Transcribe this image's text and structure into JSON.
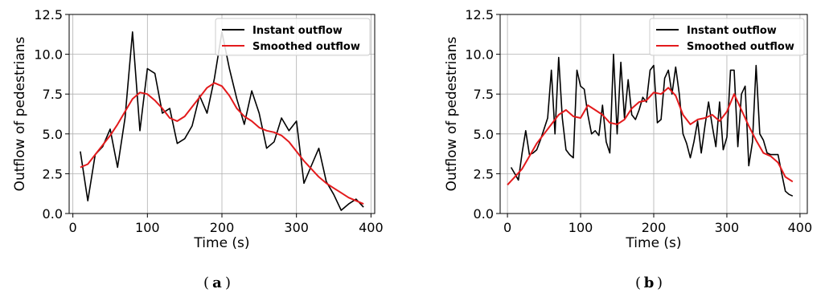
{
  "colors": {
    "instant": "#000000",
    "smoothed": "#e31a1c",
    "grid": "#b0b0b0"
  },
  "chart_data": [
    {
      "type": "line",
      "caption_letter": "a",
      "xlabel": "Time (s)",
      "ylabel": "Outflow of pedestrians",
      "xlim": [
        -5,
        405
      ],
      "ylim": [
        0,
        12.5
      ],
      "xticks": [
        "0",
        "100",
        "200",
        "300",
        "400"
      ],
      "yticks": [
        "0.0",
        "2.5",
        "5.0",
        "7.5",
        "10.0",
        "12.5"
      ],
      "grid": true,
      "legend_position": "top-right",
      "series": [
        {
          "name": "Instant outflow",
          "x": [
            10,
            20,
            30,
            40,
            50,
            60,
            70,
            80,
            90,
            100,
            110,
            120,
            130,
            140,
            150,
            160,
            170,
            180,
            190,
            200,
            210,
            220,
            230,
            240,
            250,
            260,
            270,
            280,
            290,
            300,
            310,
            320,
            330,
            340,
            350,
            360,
            370,
            380,
            390
          ],
          "y": [
            3.9,
            0.8,
            3.7,
            4.2,
            5.3,
            2.9,
            6.0,
            11.4,
            5.2,
            9.1,
            8.8,
            6.3,
            6.6,
            4.4,
            4.7,
            5.5,
            7.4,
            6.3,
            8.5,
            11.4,
            9.1,
            7.2,
            5.6,
            7.7,
            6.3,
            4.1,
            4.5,
            6.0,
            5.2,
            5.8,
            1.9,
            3.0,
            4.1,
            2.0,
            1.2,
            0.2,
            0.6,
            0.9,
            0.4
          ]
        },
        {
          "name": "Smoothed outflow",
          "x": [
            10,
            20,
            30,
            40,
            50,
            60,
            70,
            80,
            90,
            100,
            110,
            120,
            130,
            140,
            150,
            160,
            170,
            180,
            190,
            200,
            210,
            220,
            230,
            240,
            250,
            260,
            270,
            280,
            290,
            300,
            310,
            320,
            330,
            340,
            350,
            360,
            370,
            380,
            390
          ],
          "y": [
            2.9,
            3.1,
            3.7,
            4.3,
            4.9,
            5.6,
            6.4,
            7.2,
            7.6,
            7.5,
            7.1,
            6.6,
            6.0,
            5.8,
            6.1,
            6.7,
            7.3,
            7.9,
            8.2,
            8.0,
            7.4,
            6.6,
            6.1,
            5.8,
            5.4,
            5.2,
            5.1,
            4.9,
            4.5,
            3.9,
            3.3,
            2.8,
            2.3,
            1.9,
            1.6,
            1.3,
            1.0,
            0.8,
            0.6
          ]
        }
      ]
    },
    {
      "type": "line",
      "caption_letter": "b",
      "xlabel": "Time (s)",
      "ylabel": "Outflow of pedestrians",
      "xlim": [
        -10,
        410
      ],
      "ylim": [
        0,
        12.5
      ],
      "xticks": [
        "0",
        "100",
        "200",
        "300",
        "400"
      ],
      "yticks": [
        "0.0",
        "2.5",
        "5.0",
        "7.5",
        "10.0",
        "12.5"
      ],
      "grid": true,
      "legend_position": "top-right",
      "series": [
        {
          "name": "Instant outflow",
          "x": [
            5,
            10,
            15,
            20,
            25,
            30,
            35,
            40,
            45,
            50,
            55,
            60,
            65,
            70,
            75,
            80,
            85,
            90,
            95,
            100,
            105,
            110,
            115,
            120,
            125,
            130,
            135,
            140,
            145,
            150,
            155,
            160,
            165,
            170,
            175,
            180,
            185,
            190,
            195,
            200,
            205,
            210,
            215,
            220,
            225,
            230,
            235,
            240,
            245,
            250,
            255,
            260,
            265,
            270,
            275,
            280,
            285,
            290,
            295,
            300,
            305,
            310,
            315,
            320,
            325,
            330,
            335,
            340,
            345,
            350,
            355,
            360,
            365,
            370,
            375,
            380,
            385,
            390
          ],
          "y": [
            2.9,
            2.5,
            2.1,
            3.8,
            5.2,
            3.7,
            3.8,
            4.0,
            4.6,
            5.3,
            6.0,
            9.0,
            5.0,
            9.8,
            6.0,
            4.0,
            3.7,
            3.5,
            9.0,
            8.0,
            7.8,
            6.2,
            5.0,
            5.2,
            4.9,
            6.8,
            4.5,
            3.8,
            10.0,
            5.0,
            9.5,
            6.0,
            8.4,
            6.2,
            5.9,
            6.5,
            7.3,
            7.0,
            9.0,
            9.3,
            5.7,
            5.9,
            8.5,
            9.0,
            7.5,
            9.2,
            7.5,
            5.0,
            4.4,
            3.5,
            4.5,
            5.8,
            3.8,
            5.5,
            7.0,
            5.5,
            4.2,
            7.0,
            4.0,
            4.8,
            9.0,
            9.0,
            4.2,
            7.5,
            8.0,
            3.0,
            4.5,
            9.3,
            5.0,
            4.6,
            3.8,
            3.7,
            3.7,
            3.7,
            2.5,
            1.4,
            1.2,
            1.1
          ]
        },
        {
          "name": "Smoothed outflow",
          "x": [
            0,
            10,
            20,
            30,
            40,
            50,
            60,
            70,
            80,
            90,
            100,
            110,
            120,
            130,
            140,
            150,
            160,
            170,
            180,
            190,
            200,
            210,
            220,
            230,
            240,
            250,
            260,
            270,
            280,
            290,
            300,
            310,
            320,
            330,
            340,
            350,
            360,
            370,
            380,
            390
          ],
          "y": [
            1.8,
            2.3,
            2.8,
            3.6,
            4.4,
            5.0,
            5.6,
            6.2,
            6.5,
            6.1,
            6.0,
            6.8,
            6.5,
            6.2,
            5.7,
            5.6,
            5.9,
            6.6,
            7.0,
            7.1,
            7.6,
            7.5,
            7.9,
            7.4,
            6.2,
            5.6,
            5.9,
            6.0,
            6.2,
            5.8,
            6.4,
            7.5,
            6.5,
            5.5,
            4.6,
            3.8,
            3.6,
            3.2,
            2.3,
            2.0
          ]
        }
      ]
    }
  ]
}
